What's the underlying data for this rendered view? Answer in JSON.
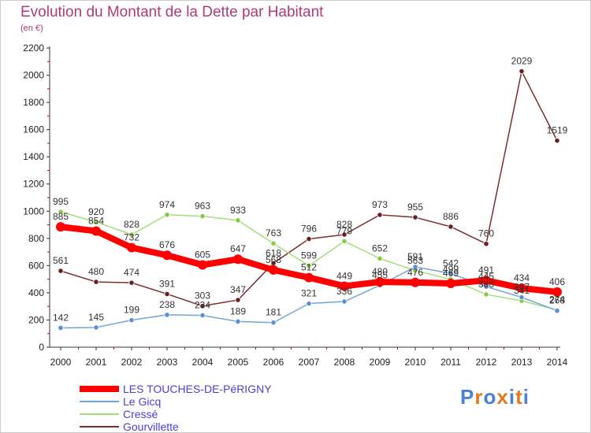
{
  "header": {
    "title": "Evolution du Montant de la Dette par Habitant",
    "subtitle": "(en €)"
  },
  "logo": {
    "text": "Proxiti"
  },
  "colors": {
    "title": "#b0397c",
    "axis": "#333333",
    "grid_tick": "#cc0000",
    "legend_text": "#4b3fd6"
  },
  "chart_data": {
    "type": "line",
    "title": "Evolution du Montant de la Dette par Habitant",
    "subtitle": "(en €)",
    "xlabel": "",
    "ylabel": "",
    "x": [
      "2000",
      "2001",
      "2002",
      "2003",
      "2004",
      "2005",
      "2006",
      "2007",
      "2008",
      "2009",
      "2010",
      "2011",
      "2012",
      "2013",
      "2014"
    ],
    "ylim": [
      0,
      2200
    ],
    "yticks": [
      0,
      200,
      400,
      600,
      800,
      1000,
      1200,
      1400,
      1600,
      1800,
      2000,
      2200
    ],
    "grid": false,
    "legend_position": "bottom-left",
    "series": [
      {
        "name": "LES TOUCHES-DE-PéRIGNY",
        "color": "#ff0000",
        "marker": "#ff0000",
        "width": 8,
        "values": [
          885,
          854,
          732,
          676,
          605,
          647,
          568,
          512,
          449,
          480,
          476,
          469,
          491,
          434,
          406
        ]
      },
      {
        "name": "Le Gicq",
        "color": "#6fa6d9",
        "marker": "#5b8fd6",
        "width": 1.5,
        "values": [
          142,
          145,
          199,
          238,
          234,
          189,
          181,
          321,
          336,
          455,
          591,
          542,
          445,
          367,
          268
        ]
      },
      {
        "name": "Cressé",
        "color": "#a3de7a",
        "marker": "#82cc4a",
        "width": 1.5,
        "values": [
          995,
          920,
          828,
          974,
          963,
          933,
          763,
          599,
          779,
          652,
          563,
          499,
          388,
          341,
          274
        ]
      },
      {
        "name": "Gourvillette",
        "color": "#7d2d2d",
        "marker": "#6b2020",
        "width": 1.5,
        "values": [
          561,
          480,
          474,
          391,
          303,
          347,
          618,
          796,
          828,
          973,
          955,
          886,
          760,
          2029,
          1519
        ]
      }
    ]
  }
}
